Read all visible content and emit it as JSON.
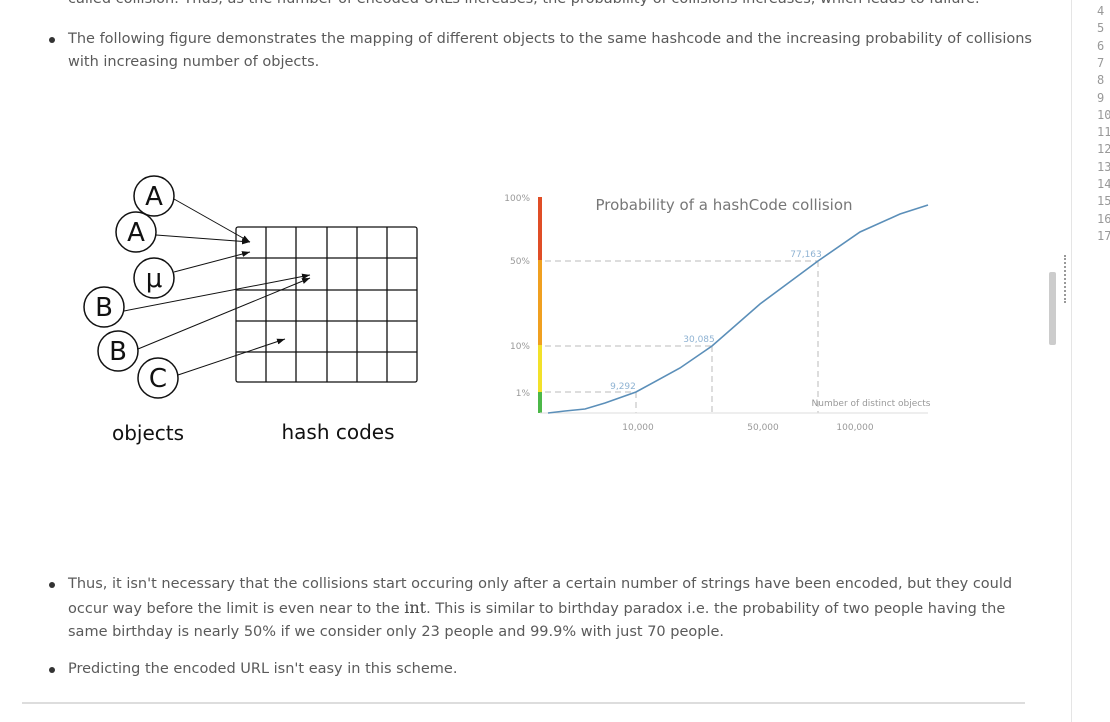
{
  "article": {
    "paragraphs": [
      "called collision. Thus, as the number of encoded URLs increases, the probability of collisions increases, which leads to failure.",
      "The following figure demonstrates the mapping of different objects to the same hashcode and the increasing probability of collisions with increasing number of objects."
    ],
    "bullet_three": {
      "before": "Thus, it isn't necessary that the collisions start occuring only after a certain number of strings have been encoded, but they could occur way before the limit is even near to the ",
      "code": "int",
      "after": ". This is similar to birthday paradox i.e. the probability of two people having the same birthday is nearly 50% if we consider only 23 people and 99.9% with just 70 people."
    },
    "bullet_four": "Predicting the encoded URL isn't easy in this scheme."
  },
  "figure": {
    "diagram": {
      "objects": [
        "A",
        "A",
        "μ",
        "B",
        "B",
        "C"
      ],
      "objects_label": "objects",
      "hash_label": "hash codes"
    },
    "chart": {
      "title": "Probability of a hashCode collision",
      "y_labels": [
        "100%",
        "50%",
        "10%",
        "1%"
      ],
      "x_labels": [
        "10,000",
        "50,000",
        "100,000"
      ],
      "annotations": [
        "9,292",
        "30,085",
        "77,163"
      ],
      "x_title": "Number of distinct objects"
    }
  },
  "editor": {
    "line_numbers": [
      "4",
      "5",
      "6",
      "7",
      "8",
      "9",
      "10",
      "11",
      "12",
      "13",
      "14",
      "15",
      "16",
      "17"
    ]
  }
}
